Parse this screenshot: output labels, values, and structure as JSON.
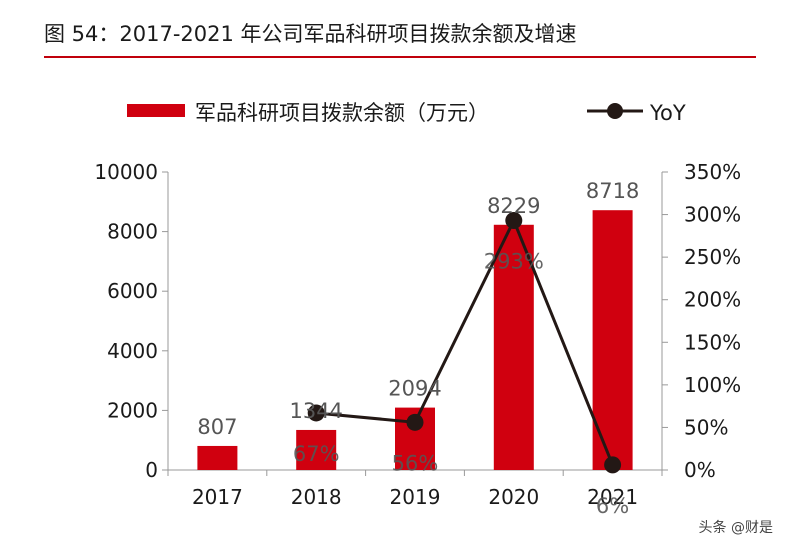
{
  "header": {
    "title": "图 54：2017-2021 年公司军品科研项目拨款余额及增速"
  },
  "watermark": "头条 @财是",
  "chart_data": {
    "type": "bar",
    "categories": [
      "2017",
      "2018",
      "2019",
      "2020",
      "2021"
    ],
    "series": [
      {
        "name": "军品科研项目拨款余额（万元）",
        "type": "bar",
        "axis": "left",
        "values": [
          807,
          1344,
          2094,
          8229,
          8718
        ],
        "labels": [
          "807",
          "1344",
          "2094",
          "8229",
          "8718"
        ]
      },
      {
        "name": "YoY",
        "type": "line",
        "axis": "right",
        "values": [
          null,
          67,
          56,
          293,
          6
        ],
        "labels": [
          "",
          "67%",
          "56%",
          "293%",
          "6%"
        ]
      }
    ],
    "y_left": {
      "min": 0,
      "max": 10000,
      "ticks": [
        "0",
        "2000",
        "4000",
        "6000",
        "8000",
        "10000"
      ]
    },
    "y_right": {
      "min": 0,
      "max": 350,
      "ticks": [
        "0%",
        "50%",
        "100%",
        "150%",
        "200%",
        "250%",
        "300%",
        "350%"
      ]
    },
    "legend_position": "top",
    "grid": false,
    "colors": {
      "bar": "#d0000f",
      "line": "#231815",
      "label": "#555555"
    }
  }
}
